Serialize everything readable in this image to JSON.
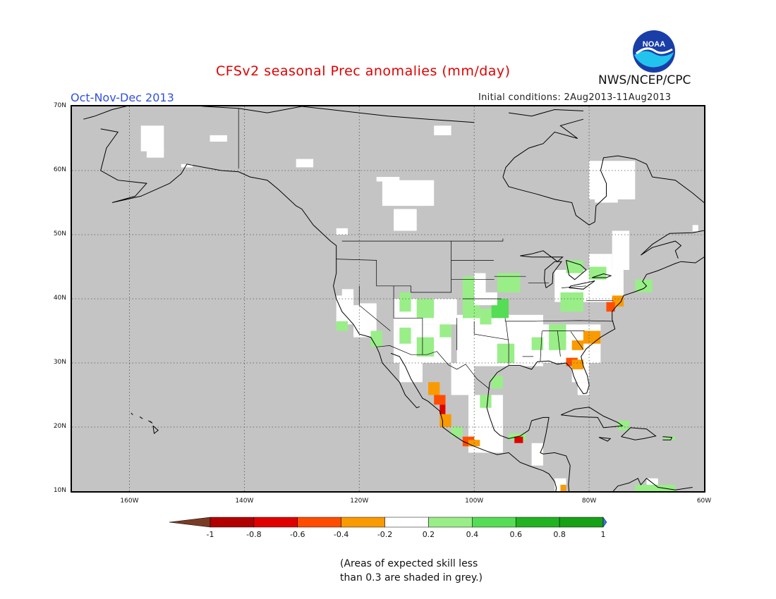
{
  "header": {
    "title": "CFSv2 seasonal Prec anomalies (mm/day)",
    "season": "Oct-Nov-Dec 2013",
    "initial_conditions": "Initial conditions: 2Aug2013-11Aug2013",
    "agency": "NWS/NCEP/CPC",
    "logo_text": "NOAA"
  },
  "map": {
    "lat_labels": [
      "70N",
      "60N",
      "50N",
      "40N",
      "30N",
      "20N",
      "10N"
    ],
    "lon_labels": [
      "160W",
      "140W",
      "120W",
      "100W",
      "80W",
      "60W"
    ],
    "lat_range": [
      10,
      70
    ],
    "lon_range": [
      -170,
      -60
    ],
    "grid": "dotted",
    "background": "#c4c4c4"
  },
  "legend": {
    "labels": [
      "-1",
      "-0.8",
      "-0.6",
      "-0.4",
      "-0.2",
      "0.2",
      "0.4",
      "0.6",
      "0.8",
      "1"
    ],
    "colors": [
      "#7a3b25",
      "#b00000",
      "#e00000",
      "#ff4d00",
      "#f99a00",
      "#ffffff",
      "#99ee88",
      "#55dd55",
      "#22b322",
      "#17a117",
      "#3377ee"
    ]
  },
  "note": {
    "line1": "(Areas of expected skill less",
    "line2": "than 0.3 are shaded in grey.)"
  }
}
